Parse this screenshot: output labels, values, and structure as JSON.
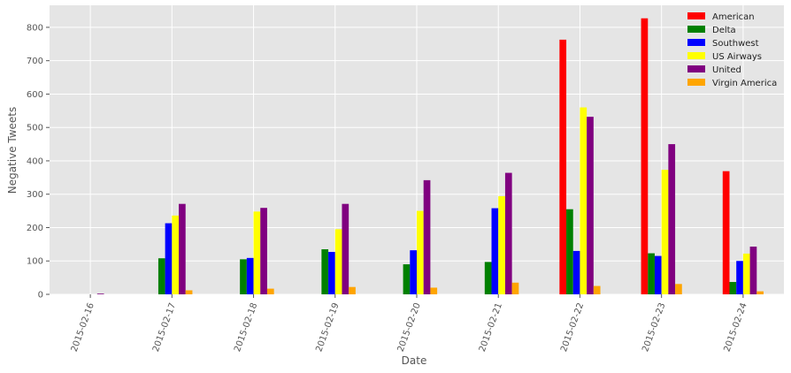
{
  "chart_data": {
    "type": "bar",
    "title": "",
    "xlabel": "Date",
    "ylabel": "Negative Tweets",
    "categories": [
      "2015-02-16",
      "2015-02-17",
      "2015-02-18",
      "2015-02-19",
      "2015-02-20",
      "2015-02-21",
      "2015-02-22",
      "2015-02-23",
      "2015-02-24"
    ],
    "series": [
      {
        "name": "American",
        "color": "#ff0000",
        "values": [
          0,
          0,
          0,
          0,
          0,
          0,
          763,
          827,
          369
        ]
      },
      {
        "name": "Delta",
        "color": "#008000",
        "values": [
          0,
          108,
          105,
          135,
          90,
          97,
          255,
          123,
          37
        ]
      },
      {
        "name": "Southwest",
        "color": "#0000ff",
        "values": [
          0,
          213,
          109,
          127,
          132,
          258,
          130,
          115,
          100
        ]
      },
      {
        "name": "US Airways",
        "color": "#ffff00",
        "values": [
          0,
          236,
          248,
          195,
          250,
          294,
          560,
          373,
          122
        ]
      },
      {
        "name": "United",
        "color": "#800080",
        "values": [
          2,
          271,
          259,
          271,
          342,
          364,
          532,
          450,
          143
        ]
      },
      {
        "name": "Virgin America",
        "color": "#ffa500",
        "values": [
          0,
          12,
          17,
          22,
          20,
          35,
          25,
          31,
          9
        ]
      }
    ],
    "ylim": [
      0,
      866
    ],
    "yticks": [
      0,
      100,
      200,
      300,
      400,
      500,
      600,
      700,
      800
    ],
    "grid": true,
    "legend_position": "top-right",
    "background_color": "#e5e5e5",
    "grid_color": "#ffffff"
  }
}
